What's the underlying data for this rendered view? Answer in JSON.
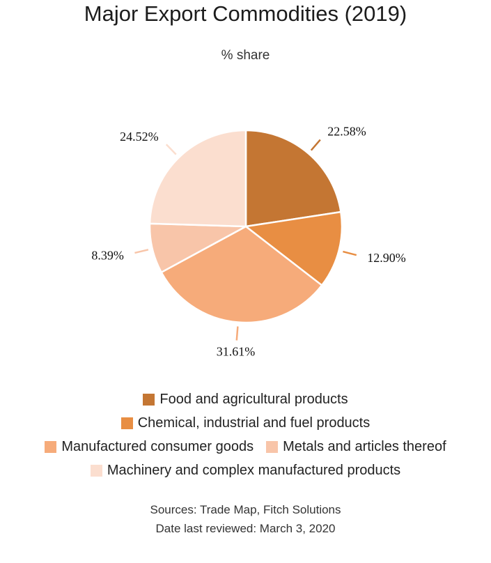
{
  "chart_data": {
    "type": "pie",
    "title": "Major Export Commodities (2019)",
    "subtitle": "% share",
    "slices": [
      {
        "label": "Food and agricultural products",
        "value": 22.58,
        "value_label": "22.58%",
        "color": "#c47633"
      },
      {
        "label": "Chemical, industrial and fuel products",
        "value": 12.9,
        "value_label": "12.90%",
        "color": "#e88e43"
      },
      {
        "label": "Manufactured consumer goods",
        "value": 31.61,
        "value_label": "31.61%",
        "color": "#f6ab7a"
      },
      {
        "label": "Metals and articles thereof",
        "value": 8.39,
        "value_label": "8.39%",
        "color": "#f8c5a9"
      },
      {
        "label": "Machinery and complex manufactured products",
        "value": 24.52,
        "value_label": "24.52%",
        "color": "#fbdecf"
      }
    ],
    "start_angle_deg": 0,
    "direction": "clockwise",
    "legend_position": "bottom"
  },
  "footer": {
    "sources": "Sources: Trade Map, Fitch Solutions",
    "reviewed": "Date last reviewed: March 3, 2020"
  }
}
